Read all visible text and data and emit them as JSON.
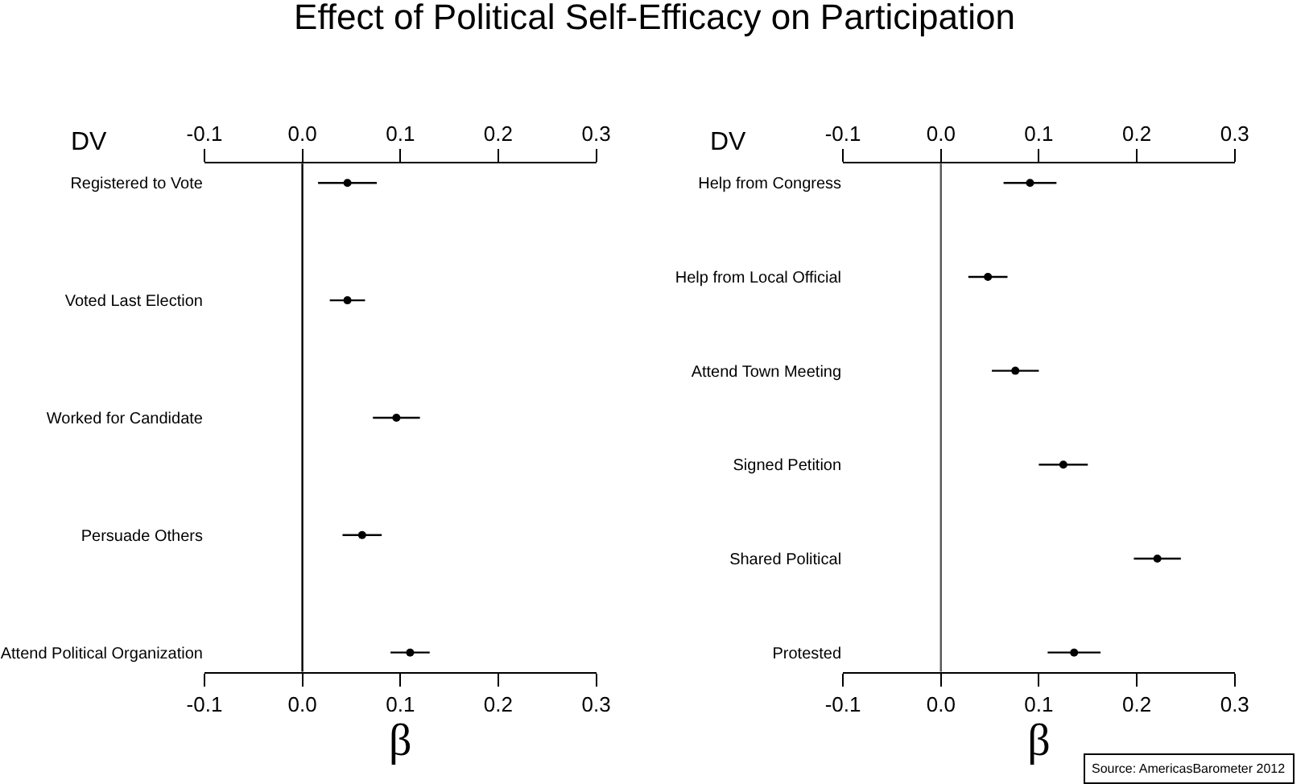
{
  "chart_data": [
    {
      "type": "scatter",
      "orientation": "horizontal",
      "title": "Effect of Political Self-Efficacy on Participation",
      "ylabel": "DV",
      "xlabel": "β",
      "categories": [
        "Registered to Vote",
        "Voted Last Election",
        "Worked for Candidate",
        "Persuade Others",
        "Attend Political Organization"
      ],
      "values": [
        0.046,
        0.046,
        0.096,
        0.061,
        0.11
      ],
      "errors": [
        0.03,
        0.018,
        0.024,
        0.02,
        0.02
      ],
      "color": "#000000",
      "marker": "circle",
      "xlim": [
        -0.1,
        0.3
      ],
      "xticks": [
        -0.1,
        {
          "value": 0,
          "label": "0.0"
        },
        0.1,
        0.2,
        0.3
      ],
      "x2lim": [
        -0.1,
        0.3
      ],
      "x2ticks": [
        -0.1,
        {
          "value": 0,
          "label": "0.0"
        },
        0.1,
        0.2,
        0.3
      ],
      "ref_lines": [
        {
          "axis": "x",
          "value": 0,
          "color": "#000000"
        }
      ]
    },
    {
      "type": "scatter",
      "orientation": "horizontal",
      "ylabel": "DV",
      "xlabel": "β",
      "categories": [
        "Help from Congress",
        "Help from Local Official",
        "Attend Town Meeting",
        "Signed Petition",
        "Shared Political",
        "Protested"
      ],
      "values": [
        0.091,
        0.048,
        0.076,
        0.125,
        0.221,
        0.136
      ],
      "errors": [
        0.027,
        0.02,
        0.024,
        0.025,
        0.024,
        0.027
      ],
      "color": "#000000",
      "marker": "circle",
      "xlim": [
        -0.1,
        0.3
      ],
      "xticks": [
        -0.1,
        {
          "value": 0,
          "label": "0.0"
        },
        0.1,
        0.2,
        0.3
      ],
      "x2lim": [
        -0.1,
        0.3
      ],
      "x2ticks": [
        -0.1,
        {
          "value": 0,
          "label": "0.0"
        },
        0.1,
        0.2,
        0.3
      ],
      "ref_lines": [
        {
          "axis": "x",
          "value": 0,
          "color": "#555555"
        }
      ],
      "annotations": [
        "Source: AmericasBarometer 2012"
      ]
    }
  ]
}
